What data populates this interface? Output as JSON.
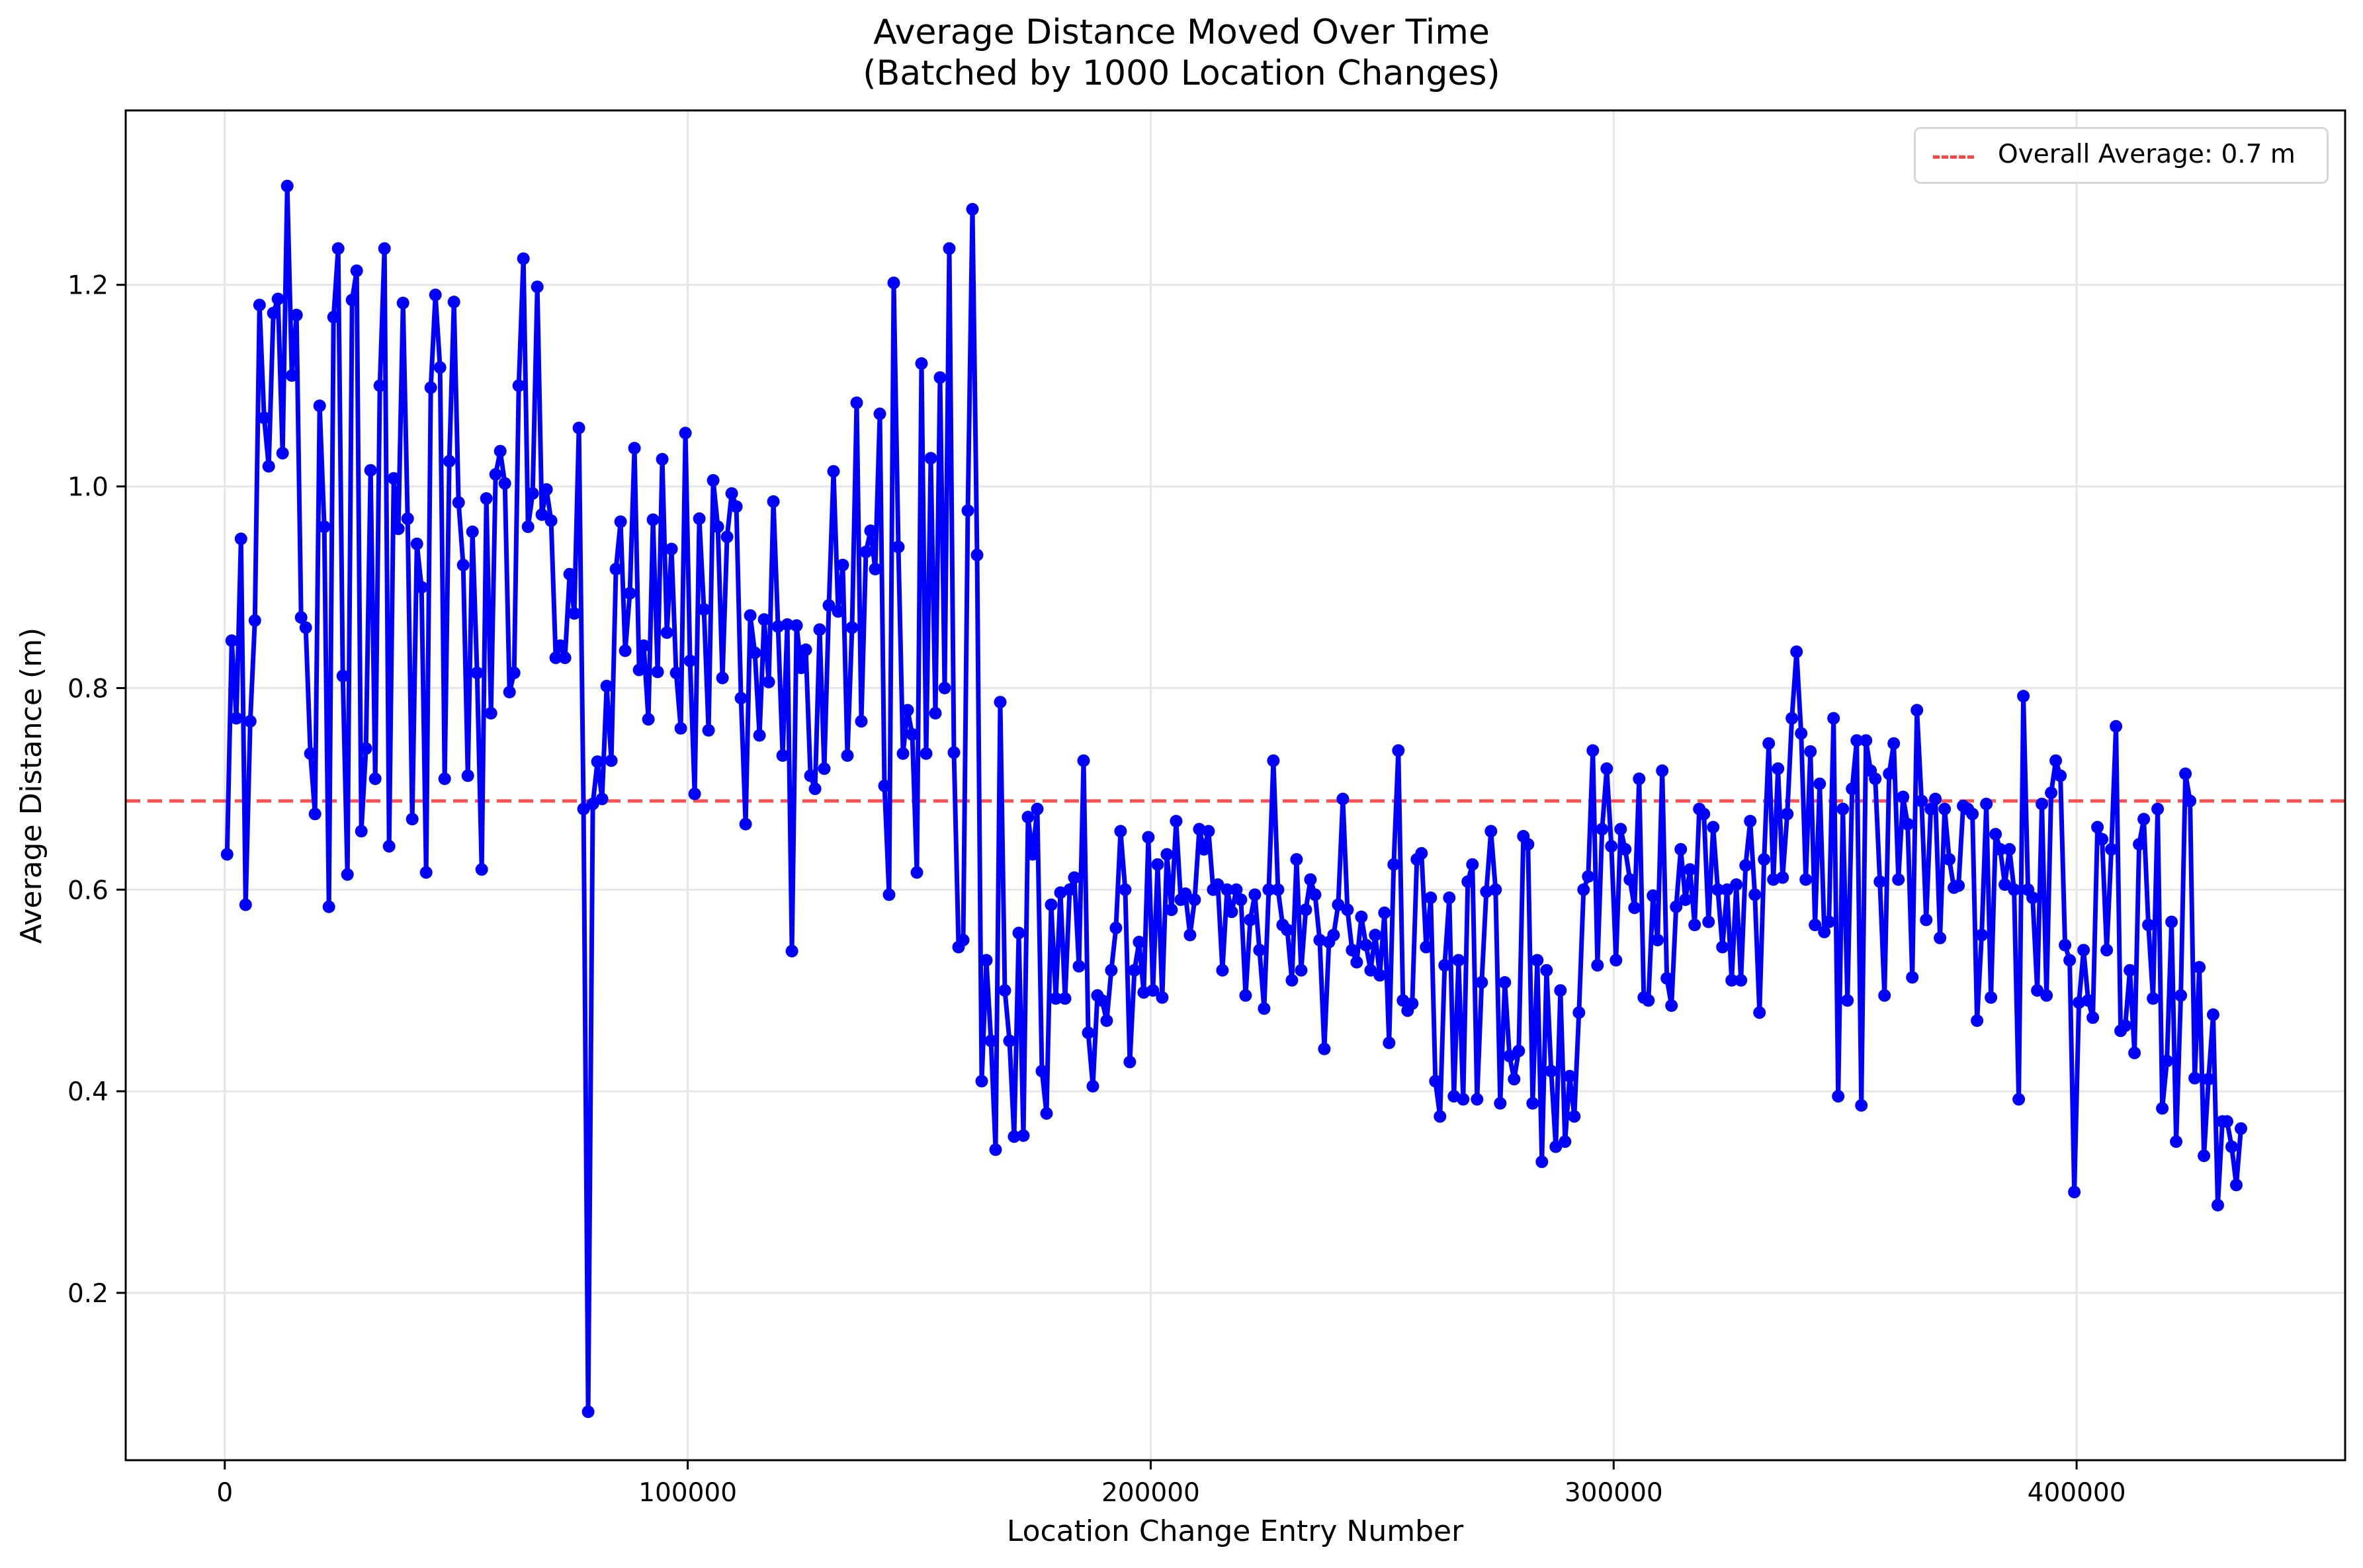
{
  "chart_data": {
    "type": "line",
    "title": "Average Distance Moved Over Time\n(Batched by 1000 Location Changes)",
    "title_lines": [
      "Average Distance Moved Over Time",
      "(Batched by 1000 Location Changes)"
    ],
    "xlabel": "Location Change Entry Number",
    "ylabel": "Average Distance (m)",
    "xlim": [
      -21400,
      458000
    ],
    "ylim": [
      0.034,
      1.373
    ],
    "xticks": [
      0,
      100000,
      200000,
      300000,
      400000
    ],
    "xtick_labels": [
      "0",
      "100000",
      "200000",
      "300000",
      "400000"
    ],
    "yticks": [
      0.2,
      0.4,
      0.6,
      0.8,
      1.0,
      1.2
    ],
    "ytick_labels": [
      "0.2",
      "0.4",
      "0.6",
      "0.8",
      "1.0",
      "1.2"
    ],
    "grid": true,
    "legend_position": "upper right",
    "reference_line": {
      "label": "Overall Average: 0.7 m",
      "y": 0.688,
      "style": "dashed",
      "color": "#ff4444"
    },
    "series": [
      {
        "name": "Average Distance",
        "color": "#0000ff",
        "marker": "circle",
        "x_start": 500,
        "x_step": 1000,
        "values": [
          0.635,
          0.847,
          0.77,
          0.948,
          0.585,
          0.767,
          0.867,
          1.18,
          1.068,
          1.02,
          1.172,
          1.186,
          1.033,
          1.298,
          1.11,
          1.17,
          0.87,
          0.86,
          0.735,
          0.675,
          1.08,
          0.96,
          0.583,
          1.168,
          1.236,
          0.812,
          0.615,
          1.185,
          1.214,
          0.658,
          0.74,
          1.016,
          0.71,
          1.1,
          1.236,
          0.643,
          1.008,
          0.958,
          1.182,
          0.968,
          0.67,
          0.943,
          0.9,
          0.617,
          1.098,
          1.19,
          1.118,
          0.71,
          1.025,
          1.183,
          0.984,
          0.922,
          0.713,
          0.955,
          0.815,
          0.62,
          0.988,
          0.775,
          1.012,
          1.035,
          1.003,
          0.796,
          0.815,
          1.1,
          1.226,
          0.96,
          0.993,
          1.198,
          0.972,
          0.997,
          0.966,
          0.83,
          0.842,
          0.83,
          0.913,
          0.874,
          1.058,
          0.68,
          0.082,
          0.685,
          0.727,
          0.69,
          0.802,
          0.728,
          0.918,
          0.965,
          0.837,
          0.894,
          1.038,
          0.818,
          0.842,
          0.769,
          0.967,
          0.816,
          1.027,
          0.855,
          0.938,
          0.815,
          0.76,
          1.053,
          0.827,
          0.695,
          0.968,
          0.878,
          0.758,
          1.006,
          0.96,
          0.81,
          0.95,
          0.993,
          0.98,
          0.79,
          0.665,
          0.872,
          0.835,
          0.753,
          0.868,
          0.806,
          0.985,
          0.861,
          0.733,
          0.863,
          0.539,
          0.862,
          0.82,
          0.838,
          0.713,
          0.7,
          0.858,
          0.72,
          0.882,
          1.015,
          0.876,
          0.922,
          0.733,
          0.86,
          1.083,
          0.767,
          0.935,
          0.956,
          0.918,
          1.072,
          0.703,
          0.595,
          1.202,
          0.94,
          0.735,
          0.778,
          0.754,
          0.617,
          1.122,
          0.735,
          1.028,
          0.775,
          1.108,
          0.8,
          1.236,
          0.736,
          0.543,
          0.55,
          0.976,
          1.275,
          0.932,
          0.41,
          0.53,
          0.45,
          0.342,
          0.786,
          0.5,
          0.45,
          0.355,
          0.557,
          0.356,
          0.672,
          0.635,
          0.68,
          0.42,
          0.378,
          0.585,
          0.492,
          0.597,
          0.492,
          0.6,
          0.612,
          0.524,
          0.728,
          0.458,
          0.405,
          0.495,
          0.49,
          0.47,
          0.52,
          0.562,
          0.658,
          0.6,
          0.429,
          0.52,
          0.548,
          0.498,
          0.652,
          0.5,
          0.625,
          0.493,
          0.635,
          0.58,
          0.668,
          0.59,
          0.596,
          0.555,
          0.59,
          0.66,
          0.64,
          0.658,
          0.6,
          0.605,
          0.52,
          0.6,
          0.578,
          0.6,
          0.59,
          0.495,
          0.57,
          0.595,
          0.54,
          0.482,
          0.6,
          0.728,
          0.6,
          0.565,
          0.56,
          0.51,
          0.63,
          0.52,
          0.58,
          0.61,
          0.595,
          0.55,
          0.442,
          0.548,
          0.555,
          0.585,
          0.69,
          0.58,
          0.54,
          0.528,
          0.573,
          0.545,
          0.52,
          0.555,
          0.515,
          0.577,
          0.448,
          0.625,
          0.738,
          0.49,
          0.48,
          0.487,
          0.63,
          0.636,
          0.543,
          0.592,
          0.41,
          0.375,
          0.525,
          0.592,
          0.395,
          0.53,
          0.392,
          0.608,
          0.625,
          0.392,
          0.508,
          0.598,
          0.658,
          0.6,
          0.388,
          0.508,
          0.435,
          0.412,
          0.44,
          0.653,
          0.645,
          0.388,
          0.53,
          0.33,
          0.52,
          0.42,
          0.345,
          0.5,
          0.35,
          0.415,
          0.375,
          0.478,
          0.6,
          0.613,
          0.738,
          0.525,
          0.66,
          0.72,
          0.643,
          0.53,
          0.66,
          0.64,
          0.61,
          0.582,
          0.71,
          0.493,
          0.49,
          0.594,
          0.55,
          0.718,
          0.512,
          0.485,
          0.583,
          0.64,
          0.59,
          0.62,
          0.565,
          0.68,
          0.675,
          0.568,
          0.662,
          0.6,
          0.543,
          0.6,
          0.51,
          0.605,
          0.51,
          0.624,
          0.668,
          0.595,
          0.478,
          0.63,
          0.745,
          0.61,
          0.72,
          0.612,
          0.675,
          0.77,
          0.836,
          0.755,
          0.61,
          0.737,
          0.565,
          0.705,
          0.558,
          0.568,
          0.77,
          0.395,
          0.68,
          0.49,
          0.7,
          0.748,
          0.386,
          0.748,
          0.718,
          0.71,
          0.608,
          0.495,
          0.715,
          0.745,
          0.61,
          0.692,
          0.665,
          0.513,
          0.778,
          0.688,
          0.57,
          0.68,
          0.69,
          0.552,
          0.68,
          0.63,
          0.602,
          0.604,
          0.683,
          0.68,
          0.675,
          0.47,
          0.555,
          0.685,
          0.493,
          0.655,
          0.64,
          0.605,
          0.64,
          0.6,
          0.392,
          0.792,
          0.6,
          0.592,
          0.5,
          0.685,
          0.495,
          0.696,
          0.728,
          0.713,
          0.545,
          0.53,
          0.3,
          0.488,
          0.54,
          0.49,
          0.473,
          0.662,
          0.65,
          0.54,
          0.64,
          0.762,
          0.46,
          0.465,
          0.52,
          0.438,
          0.645,
          0.67,
          0.565,
          0.492,
          0.68,
          0.383,
          0.43,
          0.568,
          0.35,
          0.495,
          0.715,
          0.688,
          0.413,
          0.523,
          0.336,
          0.412,
          0.476,
          0.287,
          0.37,
          0.37,
          0.345,
          0.307,
          0.363
        ]
      }
    ]
  },
  "axes": {
    "title_line1": "Average Distance Moved Over Time",
    "title_line2": "(Batched by 1000 Location Changes)",
    "xlabel": "Location Change Entry Number",
    "ylabel": "Average Distance (m)"
  },
  "legend": {
    "label": "Overall Average: 0.7 m"
  },
  "colors": {
    "series": "#0000ff",
    "reference": "#ff4444",
    "grid": "#e6e6e6"
  }
}
